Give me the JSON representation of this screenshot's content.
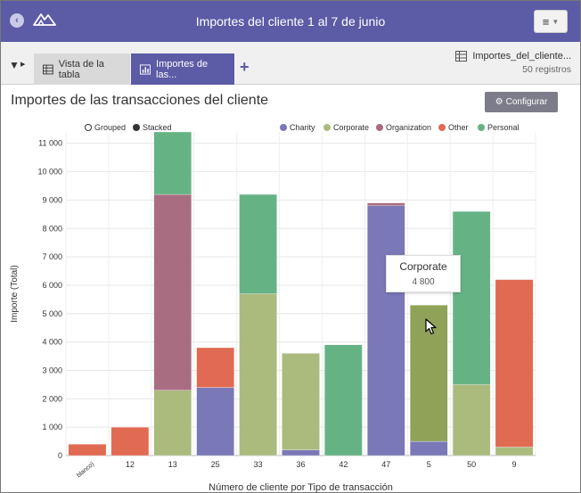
{
  "header": {
    "title": "Importes del cliente 1 al 7 de junio"
  },
  "tabs": [
    {
      "label": "Vista de la tabla",
      "icon": "table-icon"
    },
    {
      "label": "Importes de las...",
      "icon": "bar-chart-icon"
    }
  ],
  "dataset": {
    "name": "Importes_del_cliente...",
    "count": "50 registros"
  },
  "panel": {
    "title": "Importes de las transacciones del cliente",
    "config_label": "Configurar"
  },
  "chart_controls": {
    "grouped": "Grouped",
    "stacked": "Stacked"
  },
  "tooltip": {
    "title": "Corporate",
    "value": "4 800"
  },
  "colors": {
    "Charity": "#7b78b7",
    "Corporate": "#abbb7e",
    "Organization": "#a96d82",
    "Other": "#e16a53",
    "Personal": "#65b385",
    "Corporate_hover": "#8fa257"
  },
  "chart_data": {
    "type": "bar",
    "stacked": true,
    "categories": [
      "blanco)",
      "12",
      "13",
      "25",
      "33",
      "36",
      "42",
      "47",
      "5",
      "50",
      "9"
    ],
    "series": [
      {
        "name": "Charity",
        "values": [
          0,
          0,
          0,
          2400,
          0,
          200,
          0,
          8800,
          500,
          0,
          0
        ]
      },
      {
        "name": "Corporate",
        "values": [
          0,
          0,
          2300,
          0,
          5700,
          3400,
          0,
          0,
          4800,
          2500,
          300
        ]
      },
      {
        "name": "Organization",
        "values": [
          0,
          0,
          6900,
          0,
          0,
          0,
          0,
          100,
          0,
          0,
          0
        ]
      },
      {
        "name": "Other",
        "values": [
          400,
          1000,
          0,
          1400,
          0,
          0,
          0,
          0,
          0,
          0,
          5900
        ]
      },
      {
        "name": "Personal",
        "values": [
          0,
          0,
          2200,
          0,
          3500,
          0,
          3900,
          0,
          0,
          6100,
          0
        ]
      }
    ],
    "xlabel": "Número de cliente por Tipo de transacción",
    "ylabel": "Importe (Total)",
    "ylim": [
      0,
      11400
    ],
    "yticks": [
      "0",
      "1 000",
      "2 000",
      "3 000",
      "4 000",
      "5 000",
      "6 000",
      "7 000",
      "8 000",
      "9 000",
      "10 000",
      "11 000"
    ],
    "ytick_values": [
      0,
      1000,
      2000,
      3000,
      4000,
      5000,
      6000,
      7000,
      8000,
      9000,
      10000,
      11000
    ],
    "legend_position": "top-right",
    "grid": true,
    "highlighted": {
      "category": "5",
      "series": "Corporate"
    }
  }
}
